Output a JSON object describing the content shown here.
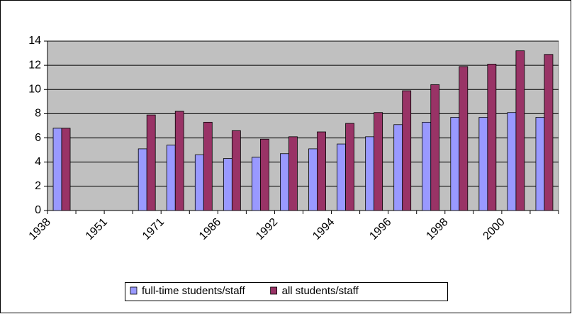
{
  "chart_data": {
    "type": "bar",
    "categories": [
      "1938",
      null,
      "1951",
      null,
      "1971",
      null,
      "1986",
      null,
      "1992",
      null,
      "1994",
      null,
      "1996",
      null,
      "1998",
      null,
      "2000",
      null
    ],
    "series": [
      {
        "name": "full-time students/staff",
        "color": "#9999ff",
        "values": [
          6.8,
          null,
          null,
          5.1,
          5.4,
          4.6,
          4.3,
          4.4,
          4.7,
          5.1,
          5.5,
          6.1,
          7.1,
          7.3,
          7.7,
          7.7,
          8.1,
          7.7
        ]
      },
      {
        "name": "all students/staff",
        "color": "#993366",
        "values": [
          6.8,
          null,
          null,
          7.9,
          8.2,
          7.3,
          6.6,
          5.9,
          6.1,
          6.5,
          7.2,
          8.1,
          9.9,
          10.4,
          11.9,
          12.1,
          13.2,
          12.9
        ]
      }
    ],
    "ylim": [
      0,
      14
    ],
    "yticks": [
      0,
      2,
      4,
      6,
      8,
      10,
      12,
      14
    ],
    "grid": true,
    "legend": "bottom"
  }
}
